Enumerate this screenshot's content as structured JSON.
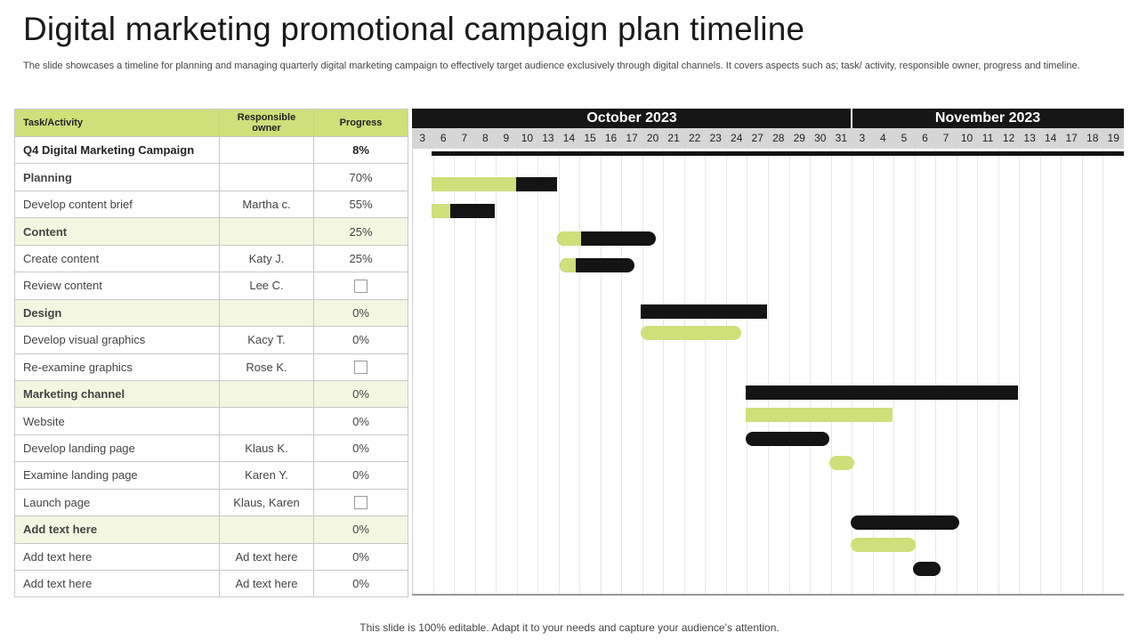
{
  "title": "Digital marketing promotional campaign plan timeline",
  "subtitle": "The slide showcases a timeline for planning and managing quarterly digital marketing campaign to effectively target audience exclusively through digital channels. It covers aspects such as; task/ activity,  responsible owner, progress and timeline.",
  "footer": "This slide is 100% editable. Adapt it to your needs and capture your audience’s attention.",
  "table": {
    "headers": [
      "Task/Activity",
      "Responsible owner",
      "Progress"
    ],
    "rows": [
      {
        "task": "Q4 Digital Marketing Campaign",
        "owner": "",
        "progress": "8%",
        "kind": "main"
      },
      {
        "task": "Planning",
        "owner": "",
        "progress": "70%",
        "kind": "phase"
      },
      {
        "task": "Develop  content brief",
        "owner": "Martha c.",
        "progress": "55%",
        "kind": "task"
      },
      {
        "task": "Content",
        "owner": "",
        "progress": "25%",
        "kind": "group"
      },
      {
        "task": "Create content",
        "owner": "Katy J.",
        "progress": "25%",
        "kind": "task"
      },
      {
        "task": "Review  content",
        "owner": "Lee C.",
        "progress": "",
        "checkbox": true,
        "kind": "task"
      },
      {
        "task": "Design",
        "owner": "",
        "progress": "0%",
        "kind": "group"
      },
      {
        "task": "Develop  visual graphics",
        "owner": "Kacy T.",
        "progress": "0%",
        "kind": "task"
      },
      {
        "task": "Re-examine graphics",
        "owner": "Rose K.",
        "progress": "",
        "checkbox": true,
        "kind": "task"
      },
      {
        "task": "Marketing channel",
        "owner": "",
        "progress": "0%",
        "kind": "group"
      },
      {
        "task": "Website",
        "owner": "",
        "progress": "0%",
        "kind": "task"
      },
      {
        "task": "Develop  landing page",
        "owner": "Klaus K.",
        "progress": "0%",
        "kind": "task"
      },
      {
        "task": "Examine landing page",
        "owner": "Karen Y.",
        "progress": "0%",
        "kind": "task"
      },
      {
        "task": "Launch page",
        "owner": "Klaus, Karen",
        "progress": "",
        "checkbox": true,
        "kind": "task"
      },
      {
        "task": "Add text here",
        "owner": "",
        "progress": "0%",
        "kind": "group"
      },
      {
        "task": "Add text here",
        "owner": "Ad text here",
        "progress": "0%",
        "kind": "task"
      },
      {
        "task": "Add text here",
        "owner": "Ad text here",
        "progress": "0%",
        "kind": "task"
      }
    ]
  },
  "gantt": {
    "months": [
      {
        "label": "October 2023",
        "start_col": 0,
        "span": 21
      },
      {
        "label": "November 2023",
        "start_col": 21,
        "span": 13
      }
    ],
    "days": [
      "3",
      "6",
      "7",
      "8",
      "9",
      "10",
      "13",
      "14",
      "15",
      "16",
      "17",
      "20",
      "21",
      "22",
      "23",
      "24",
      "27",
      "28",
      "29",
      "30",
      "31",
      "3",
      "4",
      "5",
      "6",
      "7",
      "10",
      "11",
      "12",
      "13",
      "14",
      "17",
      "18",
      "19"
    ],
    "colors": {
      "planned": "#141414",
      "progress": "#cfdf7a"
    },
    "bars": [
      {
        "row": 0,
        "start": 1,
        "end": 34,
        "progress": 0,
        "style": "line"
      },
      {
        "row": 1,
        "start": 1,
        "end": 7,
        "progress": 0.67,
        "style": "block"
      },
      {
        "row": 2,
        "start": 1,
        "end": 4,
        "progress": 0.3,
        "style": "block"
      },
      {
        "row": 3,
        "start": 7,
        "end": 11.7,
        "progress": 0.24,
        "style": "round"
      },
      {
        "row": 4,
        "start": 7.1,
        "end": 10.7,
        "progress": 0.22,
        "style": "round"
      },
      {
        "row": 5.7,
        "start": 11,
        "end": 17,
        "progress": 0,
        "style": "block"
      },
      {
        "row": 6.5,
        "start": 11,
        "end": 15.8,
        "progress": 1,
        "style": "round"
      },
      {
        "row": 8.7,
        "start": 16,
        "end": 29,
        "progress": 0,
        "style": "block"
      },
      {
        "row": 9.5,
        "start": 16,
        "end": 23,
        "progress": 1,
        "style": "block"
      },
      {
        "row": 10.4,
        "start": 16,
        "end": 20,
        "progress": 0,
        "style": "round"
      },
      {
        "row": 11.3,
        "start": 20,
        "end": 21.2,
        "progress": 1,
        "style": "round"
      },
      {
        "row": 13.5,
        "start": 21,
        "end": 26.2,
        "progress": 0,
        "style": "round"
      },
      {
        "row": 14.3,
        "start": 21,
        "end": 24.1,
        "progress": 1,
        "style": "round"
      },
      {
        "row": 15.2,
        "start": 24,
        "end": 25.3,
        "progress": 0,
        "style": "round"
      }
    ]
  }
}
